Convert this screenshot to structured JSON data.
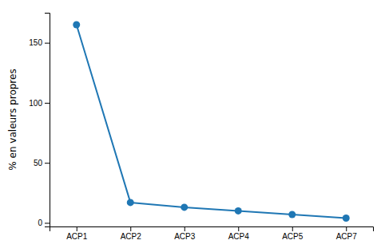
{
  "chart_data": {
    "type": "line",
    "categories": [
      "ACP1",
      "ACP2",
      "ACP3",
      "ACP4",
      "ACP5",
      "ACP7"
    ],
    "values": [
      165,
      17,
      13,
      10,
      7,
      4
    ],
    "marker": "circle",
    "ylabel": "% en valeurs propres",
    "ylim": [
      -3,
      175
    ],
    "yticks": [
      0,
      50,
      100,
      150
    ]
  }
}
